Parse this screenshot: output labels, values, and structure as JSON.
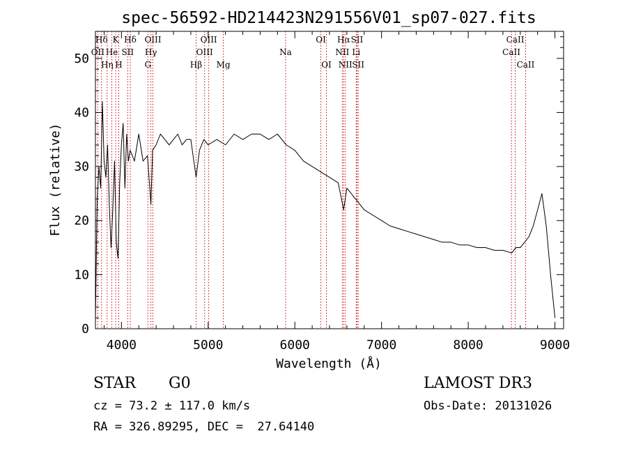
{
  "chart_data": {
    "type": "line",
    "title": "spec-56592-HD214423N291556V01_sp07-027.fits",
    "xlabel": "Wavelength (Å)",
    "ylabel": "Flux (relative)",
    "xlim": [
      3700,
      9100
    ],
    "ylim": [
      0,
      55
    ],
    "xticks": [
      4000,
      5000,
      6000,
      7000,
      8000,
      9000
    ],
    "yticks": [
      0,
      10,
      20,
      30,
      40,
      50
    ],
    "series": [
      {
        "name": "spectrum",
        "x": [
          3700,
          3720,
          3740,
          3760,
          3780,
          3800,
          3820,
          3840,
          3860,
          3880,
          3900,
          3920,
          3940,
          3960,
          3980,
          4000,
          4020,
          4040,
          4060,
          4080,
          4100,
          4150,
          4200,
          4250,
          4300,
          4340,
          4360,
          4400,
          4450,
          4500,
          4550,
          4600,
          4650,
          4700,
          4750,
          4800,
          4861,
          4900,
          4950,
          5000,
          5100,
          5200,
          5300,
          5400,
          5500,
          5600,
          5700,
          5800,
          5900,
          6000,
          6100,
          6200,
          6300,
          6400,
          6500,
          6563,
          6600,
          6700,
          6800,
          6900,
          7000,
          7100,
          7200,
          7300,
          7400,
          7500,
          7600,
          7700,
          7800,
          7900,
          8000,
          8100,
          8200,
          8300,
          8400,
          8500,
          8550,
          8600,
          8650,
          8700,
          8750,
          8800,
          8850,
          8900,
          8950,
          9000
        ],
        "y": [
          2,
          24,
          30,
          26,
          42,
          31,
          28,
          34,
          23,
          15,
          22,
          31,
          16,
          13,
          27,
          34,
          38,
          26,
          36,
          31,
          33,
          31,
          36,
          31,
          32,
          23,
          33,
          34,
          36,
          35,
          34,
          35,
          36,
          34,
          35,
          35,
          28,
          33,
          35,
          34,
          35,
          34,
          36,
          35,
          36,
          36,
          35,
          36,
          34,
          33,
          31,
          30,
          29,
          28,
          27,
          22,
          26,
          24,
          22,
          21,
          20,
          19,
          18.5,
          18,
          17.5,
          17,
          16.5,
          16,
          16,
          15.5,
          15.5,
          15,
          15,
          14.5,
          14.5,
          14,
          15,
          15,
          16,
          17,
          19,
          22,
          25,
          19,
          10,
          2
        ]
      }
    ],
    "spectral_lines": [
      {
        "name": "Hδ",
        "wavelength": 3770,
        "row": 1
      },
      {
        "name": "K",
        "wavelength": 3934,
        "row": 1
      },
      {
        "name": "Hδ",
        "wavelength": 4102,
        "row": 1
      },
      {
        "name": "OIII",
        "wavelength": 4363,
        "row": 1
      },
      {
        "name": "OIII",
        "wavelength": 5007,
        "row": 1
      },
      {
        "name": "OI",
        "wavelength": 6300,
        "row": 1
      },
      {
        "name": "Hα",
        "wavelength": 6563,
        "row": 1
      },
      {
        "name": "SII",
        "wavelength": 6717,
        "row": 1
      },
      {
        "name": "CaII",
        "wavelength": 8542,
        "row": 1
      },
      {
        "name": "OII",
        "wavelength": 3727,
        "row": 2
      },
      {
        "name": "He",
        "wavelength": 3889,
        "row": 2
      },
      {
        "name": "SII",
        "wavelength": 4072,
        "row": 2
      },
      {
        "name": "Hγ",
        "wavelength": 4340,
        "row": 2
      },
      {
        "name": "OIII",
        "wavelength": 4959,
        "row": 2
      },
      {
        "name": "Na",
        "wavelength": 5893,
        "row": 2
      },
      {
        "name": "NII",
        "wavelength": 6548,
        "row": 2
      },
      {
        "name": "Li",
        "wavelength": 6708,
        "row": 2
      },
      {
        "name": "CaII",
        "wavelength": 8498,
        "row": 2
      },
      {
        "name": "Hη",
        "wavelength": 3835,
        "row": 3
      },
      {
        "name": "H",
        "wavelength": 3969,
        "row": 3
      },
      {
        "name": "G",
        "wavelength": 4305,
        "row": 3
      },
      {
        "name": "Hβ",
        "wavelength": 4861,
        "row": 3
      },
      {
        "name": "Mg",
        "wavelength": 5175,
        "row": 3
      },
      {
        "name": "OI",
        "wavelength": 6364,
        "row": 3
      },
      {
        "name": "NII",
        "wavelength": 6583,
        "row": 3
      },
      {
        "name": "SII",
        "wavelength": 6731,
        "row": 3
      },
      {
        "name": "CaII",
        "wavelength": 8662,
        "row": 3
      }
    ]
  },
  "footer": {
    "object_class": "STAR",
    "subclass": "G0",
    "survey": "LAMOST DR3",
    "redshift": "cz = 73.2 ± 117.0 km/s",
    "obs_date": "Obs-Date: 20131026",
    "coords": "RA = 326.89295, DEC =  27.64140"
  },
  "colors": {
    "spectrum": "#000000",
    "line_markers": "#cc0000",
    "axes": "#000000"
  }
}
